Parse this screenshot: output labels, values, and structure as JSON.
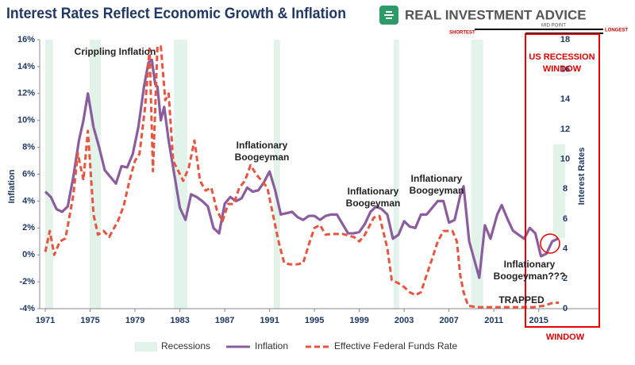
{
  "header": {
    "title": "Interest Rates Reflect Economic Growth & Inflation",
    "brand": "REAL INVESTMENT ADVICE"
  },
  "chart_data": {
    "type": "line",
    "y_label": "Inflation",
    "y2_label": "Interest Rates",
    "xlim": [
      1970.5,
      2020.4
    ],
    "xticks": [
      1971,
      1975,
      1979,
      1983,
      1987,
      1991,
      1995,
      1999,
      2003,
      2007,
      2011,
      2015
    ],
    "ylim": [
      -4,
      16
    ],
    "yticks": [
      {
        "value": -4,
        "label": "-4%"
      },
      {
        "value": -2,
        "label": "-2%"
      },
      {
        "value": 0,
        "label": "0%"
      },
      {
        "value": 2,
        "label": "2%"
      },
      {
        "value": 4,
        "label": "4%"
      },
      {
        "value": 6,
        "label": "6%"
      },
      {
        "value": 8,
        "label": "8%"
      },
      {
        "value": 10,
        "label": "10%"
      },
      {
        "value": 12,
        "label": "12%"
      },
      {
        "value": 14,
        "label": "14%"
      },
      {
        "value": 16,
        "label": "16%"
      }
    ],
    "y2lim": [
      0,
      18
    ],
    "y2ticks": [
      0,
      2,
      4,
      6,
      8,
      10,
      12,
      14,
      16,
      18
    ],
    "grid": false,
    "legend": "bottom",
    "recessions_name": "Recessions",
    "recessions_color": "#e2f3ea",
    "recessions": [
      [
        1971.0,
        1971.7
      ],
      [
        1974.96,
        1975.95
      ],
      [
        1982.46,
        1983.66
      ],
      [
        1991.37,
        1991.93
      ],
      [
        2002.05,
        2002.54
      ],
      [
        2008.98,
        2010.04
      ]
    ],
    "series": [
      {
        "name": "Inflation",
        "color": "#8b5d9e",
        "style": "solid",
        "x": [
          1971.0,
          1971.5,
          1972,
          1972.5,
          1973,
          1973.5,
          1974,
          1974.4,
          1974.8,
          1975.3,
          1975.8,
          1976.3,
          1977,
          1977.3,
          1977.8,
          1978.3,
          1978.8,
          1979.3,
          1979.8,
          1980.2,
          1980.5,
          1980.8,
          1981.0,
          1981.3,
          1981.6,
          1982,
          1982.5,
          1983,
          1983.5,
          1984,
          1984.5,
          1985,
          1985.5,
          1986,
          1986.5,
          1987,
          1987.5,
          1988,
          1988.5,
          1989,
          1989.5,
          1990,
          1990.5,
          1991,
          1991.5,
          1992,
          1992.5,
          1993,
          1993.5,
          1994,
          1994.5,
          1995,
          1995.5,
          1996,
          1996.5,
          1997,
          1997.5,
          1998,
          1998.5,
          1999,
          1999.5,
          2000,
          2000.5,
          2001,
          2001.5,
          2002,
          2002.5,
          2003,
          2003.5,
          2004,
          2004.5,
          2005,
          2005.5,
          2006,
          2006.5,
          2007,
          2007.5,
          2008,
          2008.3,
          2008.8,
          2009.3,
          2009.7,
          2010.2,
          2010.7,
          2011.3,
          2011.7,
          2012.2,
          2012.7,
          2013.2,
          2013.7,
          2014.2,
          2014.7,
          2015.2,
          2015.7,
          2016.2,
          2016.7
        ],
        "values": [
          4.7,
          4.3,
          3.4,
          3.2,
          3.6,
          5.8,
          8.5,
          10.0,
          12.0,
          9.5,
          8.0,
          6.3,
          5.6,
          5.3,
          6.6,
          6.5,
          7.5,
          9.5,
          12.5,
          14.3,
          14.5,
          12.7,
          12.5,
          10.0,
          11.0,
          8.5,
          6.0,
          3.5,
          2.6,
          4.5,
          4.3,
          4.0,
          3.6,
          2.0,
          1.6,
          3.8,
          4.3,
          4.0,
          4.2,
          5.0,
          4.7,
          4.8,
          5.4,
          6.2,
          4.8,
          3.0,
          3.1,
          3.2,
          2.8,
          2.6,
          2.9,
          2.9,
          2.6,
          2.9,
          3.0,
          3.0,
          2.3,
          1.6,
          1.6,
          1.7,
          2.3,
          3.2,
          3.6,
          3.4,
          3.0,
          1.2,
          1.5,
          2.5,
          2.1,
          2.0,
          3.0,
          3.0,
          3.5,
          4.0,
          4.0,
          2.4,
          2.6,
          4.4,
          5.1,
          1.0,
          -0.5,
          -1.7,
          2.2,
          1.2,
          3.0,
          3.7,
          2.7,
          1.8,
          1.5,
          1.2,
          2.0,
          1.6,
          -0.1,
          0.1,
          1.0,
          1.2
        ]
      },
      {
        "name": "Effective Federal Funds Rate",
        "color": "#e8553f",
        "style": "dashed",
        "axis": "y2",
        "x": [
          1971.0,
          1971.4,
          1971.8,
          1972.3,
          1972.8,
          1973.5,
          1973.9,
          1974.4,
          1974.8,
          1975.3,
          1975.7,
          1976.2,
          1976.7,
          1977.5,
          1978,
          1978.5,
          1979,
          1979.4,
          1979.9,
          1980.3,
          1980.6,
          1981.0,
          1981.3,
          1981.7,
          1982,
          1982.4,
          1982.8,
          1983.3,
          1983.8,
          1984.3,
          1984.8,
          1985.3,
          1985.8,
          1986.3,
          1986.8,
          1987.3,
          1987.8,
          1988.3,
          1988.8,
          1989.3,
          1989.8,
          1990.3,
          1990.8,
          1991.3,
          1991.8,
          1992.3,
          1992.8,
          1993.5,
          1994,
          1994.5,
          1995,
          1995.5,
          1996,
          1996.5,
          1997.5,
          1998.5,
          1999,
          1999.5,
          2000.3,
          2000.8,
          2001.5,
          2001.9,
          2002.5,
          2003,
          2003.5,
          2004,
          2004.5,
          2005,
          2005.5,
          2006,
          2006.5,
          2007.3,
          2007.7,
          2008,
          2008.3,
          2008.7,
          2009.5,
          2010.5,
          2011.5,
          2012.5,
          2013.5,
          2014.5,
          2015.5,
          2016.3,
          2016.8
        ],
        "values": [
          3.8,
          5.2,
          3.6,
          4.5,
          4.7,
          7.6,
          10.4,
          8.6,
          11.9,
          6.3,
          4.95,
          5.2,
          4.8,
          5.9,
          6.9,
          8.55,
          9.9,
          10.35,
          13.5,
          17.4,
          9.2,
          17.55,
          17.55,
          13.95,
          14.4,
          9.9,
          9.3,
          8.55,
          9.45,
          11.25,
          8.55,
          7.9,
          8.1,
          6.6,
          5.85,
          7.0,
          7.0,
          8.1,
          8.55,
          9.6,
          9.0,
          8.55,
          8.1,
          6.3,
          4.5,
          3.06,
          2.97,
          2.97,
          3.06,
          4.3,
          5.4,
          5.6,
          4.95,
          5.0,
          5.0,
          4.8,
          4.5,
          4.95,
          6.1,
          6.2,
          4.05,
          1.9,
          1.7,
          1.45,
          1.1,
          0.9,
          1.1,
          2.25,
          3.35,
          4.5,
          5.2,
          5.2,
          4.5,
          2.25,
          1.1,
          0.2,
          0.1,
          0.1,
          0.1,
          0.1,
          0.1,
          0.1,
          0.2,
          0.4,
          0.4
        ]
      }
    ],
    "annotations": [
      {
        "lines": [
          "Crippling Inflation"
        ]
      },
      {
        "lines": [
          "Inflationary",
          "Boogeyman"
        ]
      },
      {
        "lines": [
          "Inflationary",
          "Boogeyman"
        ]
      },
      {
        "lines": [
          "Inflationary",
          "Boogeyman"
        ]
      },
      {
        "lines": [
          "Inflationary",
          "Boogeyman???"
        ]
      },
      {
        "lines": [
          "TRAPPED"
        ]
      }
    ],
    "window": {
      "lines": [
        "US RECESSION",
        "WINDOW"
      ],
      "bottom": "WINDOW",
      "shortest": "SHORTEST",
      "mid": "MID POINT",
      "longest": "LONGEST"
    }
  }
}
